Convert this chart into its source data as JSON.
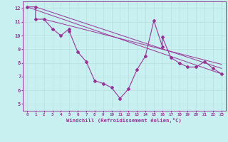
{
  "xlabel": "Windchill (Refroidissement éolien,°C)",
  "bg_color": "#c8f0f0",
  "line_color": "#993399",
  "grid_color": "#b8e0e0",
  "xlim": [
    -0.5,
    23.5
  ],
  "ylim": [
    4.5,
    12.5
  ],
  "yticks": [
    5,
    6,
    7,
    8,
    9,
    10,
    11,
    12
  ],
  "xticks": [
    0,
    1,
    2,
    3,
    4,
    5,
    6,
    7,
    8,
    9,
    10,
    11,
    12,
    13,
    14,
    15,
    16,
    17,
    18,
    19,
    20,
    21,
    22,
    23
  ],
  "series": [
    [
      0,
      12.1
    ],
    [
      1,
      12.1
    ],
    [
      1,
      11.2
    ],
    [
      2,
      11.2
    ],
    [
      3,
      10.5
    ],
    [
      4,
      10.0
    ],
    [
      5,
      10.5
    ],
    [
      5,
      10.3
    ],
    [
      6,
      8.8
    ],
    [
      7,
      8.1
    ],
    [
      8,
      6.7
    ],
    [
      9,
      6.5
    ],
    [
      10,
      6.2
    ],
    [
      11,
      5.4
    ],
    [
      12,
      6.1
    ],
    [
      13,
      7.5
    ],
    [
      14,
      8.5
    ],
    [
      15,
      11.1
    ],
    [
      16,
      9.2
    ],
    [
      16,
      9.9
    ],
    [
      17,
      8.4
    ],
    [
      18,
      8.0
    ],
    [
      19,
      7.7
    ],
    [
      20,
      7.7
    ],
    [
      21,
      8.1
    ],
    [
      22,
      7.6
    ],
    [
      23,
      7.2
    ]
  ],
  "line1": [
    [
      0,
      12.1
    ],
    [
      23,
      7.2
    ]
  ],
  "line2": [
    [
      1,
      12.1
    ],
    [
      23,
      7.6
    ]
  ],
  "line3": [
    [
      2,
      11.2
    ],
    [
      23,
      7.9
    ]
  ]
}
